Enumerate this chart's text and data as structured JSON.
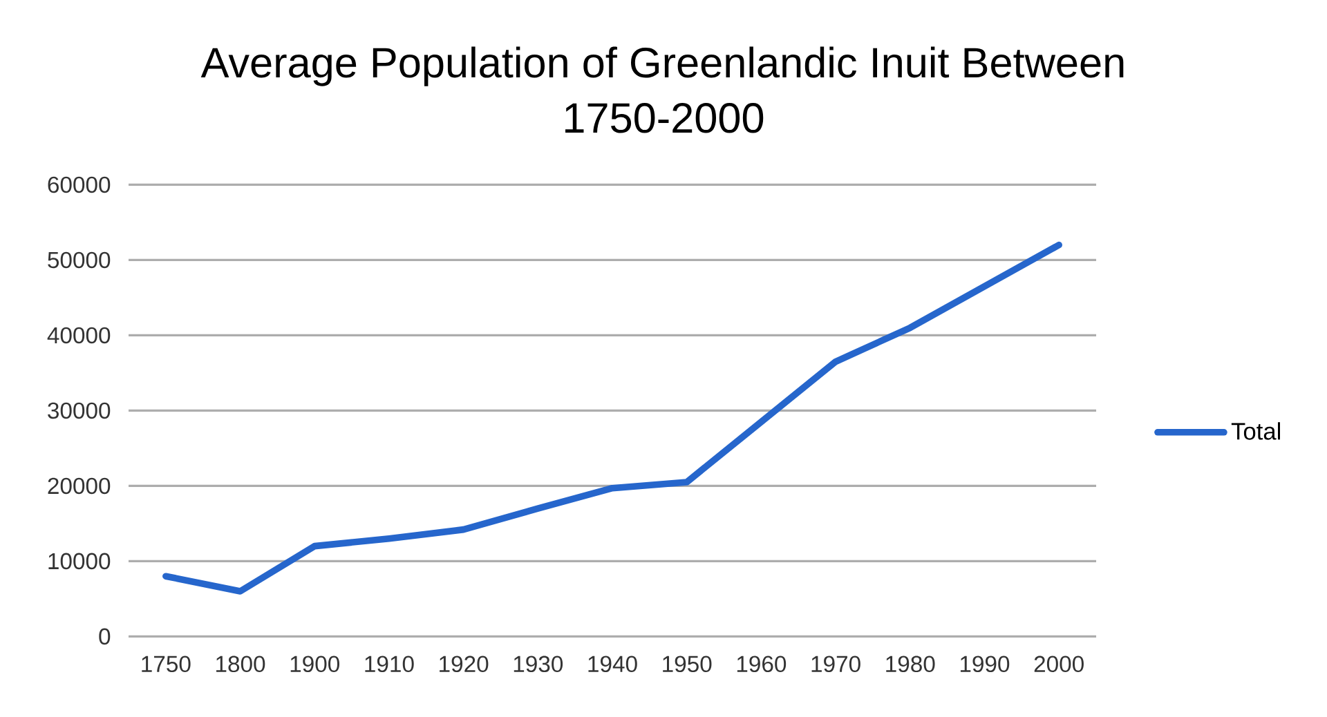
{
  "chart_data": {
    "type": "line",
    "title": "Average Population of Greenlandic Inuit Between 1750-2000",
    "categories": [
      "1750",
      "1800",
      "1900",
      "1910",
      "1920",
      "1930",
      "1940",
      "1950",
      "1960",
      "1970",
      "1980",
      "1990",
      "2000"
    ],
    "series": [
      {
        "name": "Total",
        "color": "#2666cc",
        "values": [
          8000,
          6000,
          12000,
          13000,
          14200,
          17000,
          19700,
          20500,
          28500,
          36500,
          41000,
          46500,
          52000
        ]
      }
    ],
    "ylim": [
      0,
      60000
    ],
    "yticks": [
      0,
      10000,
      20000,
      30000,
      40000,
      50000,
      60000
    ],
    "grid": "y",
    "legend": "right",
    "marker": "none",
    "line_style": "solid"
  }
}
